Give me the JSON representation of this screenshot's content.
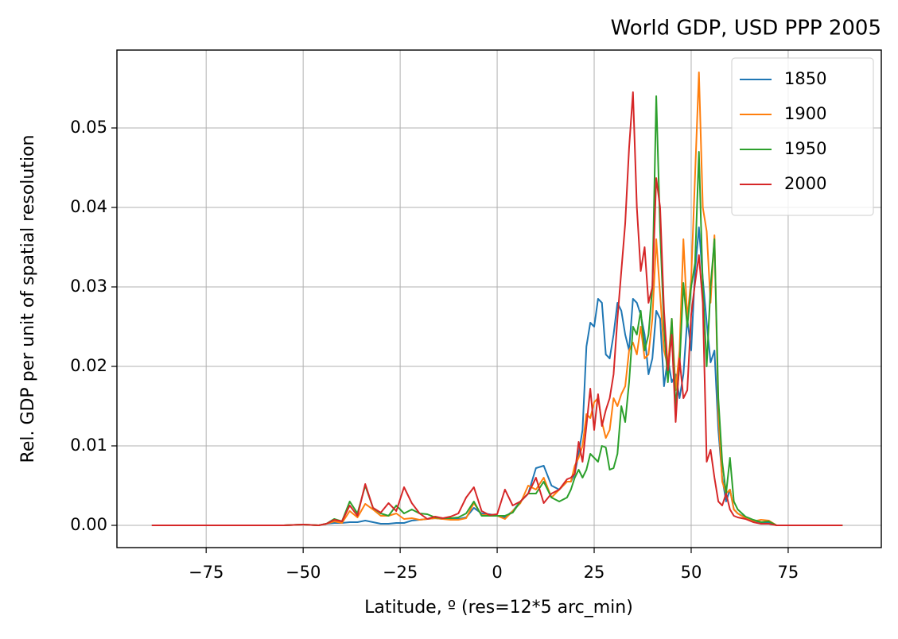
{
  "chart_data": {
    "type": "line",
    "title": "World GDP, USD PPP 2005",
    "x_label": "Latitude, º (res=12*5 arc_min)",
    "y_label": "Rel. GDP per unit of spatial resolution",
    "x": [
      -89,
      -70,
      -55,
      -50,
      -46,
      -44,
      -42,
      -40,
      -38,
      -36,
      -34,
      -32,
      -30,
      -28,
      -26,
      -24,
      -22,
      -20,
      -18,
      -16,
      -14,
      -12,
      -10,
      -8,
      -6,
      -4,
      -2,
      0,
      2,
      4,
      6,
      8,
      10,
      12,
      14,
      16,
      18,
      19,
      20,
      21,
      22,
      23,
      24,
      25,
      26,
      27,
      28,
      29,
      30,
      31,
      32,
      33,
      34,
      35,
      36,
      37,
      38,
      39,
      40,
      41,
      42,
      43,
      44,
      45,
      46,
      47,
      48,
      49,
      50,
      51,
      52,
      53,
      54,
      55,
      56,
      57,
      58,
      59,
      60,
      61,
      62,
      64,
      66,
      68,
      70,
      72,
      89
    ],
    "series": [
      {
        "name": "1850",
        "color": "#1f77b4",
        "values": [
          0,
          0,
          0,
          0.0001,
          0,
          0.0002,
          0.0003,
          0.0003,
          0.0004,
          0.0004,
          0.0006,
          0.0004,
          0.0002,
          0.0002,
          0.0003,
          0.0003,
          0.0006,
          0.0007,
          0.0008,
          0.0009,
          0.0008,
          0.0008,
          0.0008,
          0.001,
          0.0022,
          0.0015,
          0.0014,
          0.0012,
          0.001,
          0.0018,
          0.003,
          0.004,
          0.0072,
          0.0075,
          0.005,
          0.0045,
          0.0055,
          0.0055,
          0.0065,
          0.009,
          0.012,
          0.0225,
          0.0255,
          0.025,
          0.0285,
          0.028,
          0.0215,
          0.021,
          0.024,
          0.028,
          0.027,
          0.024,
          0.022,
          0.0285,
          0.028,
          0.0265,
          0.024,
          0.019,
          0.021,
          0.027,
          0.026,
          0.0175,
          0.021,
          0.018,
          0.019,
          0.016,
          0.019,
          0.026,
          0.022,
          0.032,
          0.0375,
          0.031,
          0.0255,
          0.0205,
          0.022,
          0.012,
          0.006,
          0.003,
          0.0045,
          0.002,
          0.0015,
          0.001,
          0.0006,
          0.0004,
          0.0004,
          0,
          0
        ]
      },
      {
        "name": "1900",
        "color": "#ff7f0e",
        "values": [
          0,
          0,
          0,
          0.0001,
          0,
          0.0002,
          0.0005,
          0.0003,
          0.0018,
          0.001,
          0.0027,
          0.002,
          0.0012,
          0.0012,
          0.0015,
          0.0008,
          0.0009,
          0.0007,
          0.0008,
          0.0009,
          0.0008,
          0.0007,
          0.0007,
          0.0009,
          0.0028,
          0.0013,
          0.0013,
          0.0012,
          0.0008,
          0.0018,
          0.0028,
          0.005,
          0.0045,
          0.006,
          0.0035,
          0.0045,
          0.0055,
          0.0055,
          0.0075,
          0.0085,
          0.01,
          0.014,
          0.0135,
          0.0155,
          0.016,
          0.013,
          0.011,
          0.012,
          0.016,
          0.015,
          0.0165,
          0.0175,
          0.022,
          0.023,
          0.0215,
          0.025,
          0.021,
          0.0215,
          0.026,
          0.036,
          0.029,
          0.022,
          0.02,
          0.026,
          0.017,
          0.022,
          0.036,
          0.026,
          0.031,
          0.044,
          0.057,
          0.04,
          0.037,
          0.028,
          0.0365,
          0.014,
          0.0055,
          0.004,
          0.0045,
          0.002,
          0.0015,
          0.0009,
          0.0005,
          0.0007,
          0.0006,
          0,
          0
        ]
      },
      {
        "name": "1950",
        "color": "#2ca02c",
        "values": [
          0,
          0,
          0,
          0.0001,
          0,
          0.0002,
          0.0008,
          0.0005,
          0.003,
          0.0015,
          0.005,
          0.0022,
          0.0015,
          0.0012,
          0.0025,
          0.0015,
          0.002,
          0.0015,
          0.0014,
          0.001,
          0.0009,
          0.0009,
          0.001,
          0.0015,
          0.003,
          0.0012,
          0.0012,
          0.0012,
          0.0012,
          0.0016,
          0.003,
          0.004,
          0.004,
          0.0055,
          0.0035,
          0.003,
          0.0035,
          0.0045,
          0.006,
          0.007,
          0.006,
          0.007,
          0.009,
          0.0085,
          0.008,
          0.01,
          0.0098,
          0.007,
          0.0072,
          0.009,
          0.015,
          0.013,
          0.018,
          0.025,
          0.024,
          0.027,
          0.022,
          0.024,
          0.03,
          0.054,
          0.037,
          0.025,
          0.018,
          0.026,
          0.015,
          0.02,
          0.0305,
          0.025,
          0.03,
          0.033,
          0.047,
          0.03,
          0.02,
          0.03,
          0.036,
          0.016,
          0.008,
          0.004,
          0.0085,
          0.003,
          0.002,
          0.0011,
          0.0007,
          0.0004,
          0.0005,
          0,
          0
        ]
      },
      {
        "name": "2000",
        "color": "#d62728",
        "values": [
          0,
          0,
          0,
          0.0001,
          0,
          0.0002,
          0.0007,
          0.0005,
          0.0025,
          0.0012,
          0.0052,
          0.0022,
          0.0016,
          0.0028,
          0.0018,
          0.0048,
          0.0028,
          0.0015,
          0.0008,
          0.0011,
          0.0009,
          0.0011,
          0.0015,
          0.0035,
          0.0048,
          0.0018,
          0.0013,
          0.0014,
          0.0045,
          0.0025,
          0.003,
          0.004,
          0.006,
          0.0028,
          0.004,
          0.0045,
          0.0058,
          0.006,
          0.0065,
          0.0105,
          0.008,
          0.0125,
          0.0172,
          0.012,
          0.0165,
          0.0125,
          0.0145,
          0.016,
          0.019,
          0.026,
          0.032,
          0.038,
          0.0475,
          0.0545,
          0.04,
          0.032,
          0.035,
          0.028,
          0.03,
          0.0437,
          0.04,
          0.027,
          0.0195,
          0.024,
          0.013,
          0.021,
          0.016,
          0.017,
          0.0265,
          0.0305,
          0.034,
          0.028,
          0.008,
          0.0095,
          0.006,
          0.003,
          0.0025,
          0.004,
          0.002,
          0.0012,
          0.001,
          0.0008,
          0.0004,
          0.0002,
          0.0002,
          0,
          0
        ]
      }
    ],
    "xlim": [
      -98,
      99
    ],
    "ylim": [
      -0.0028,
      0.0598
    ],
    "xticks": [
      {
        "value": -75,
        "label": "−75"
      },
      {
        "value": -50,
        "label": "−50"
      },
      {
        "value": -25,
        "label": "−25"
      },
      0,
      25,
      50,
      75
    ],
    "yticks": [
      {
        "value": 0,
        "label": "0.00"
      },
      {
        "value": 0.01,
        "label": "0.01"
      },
      {
        "value": 0.02,
        "label": "0.02"
      },
      {
        "value": 0.03,
        "label": "0.03"
      },
      {
        "value": 0.04,
        "label": "0.04"
      },
      {
        "value": 0.05,
        "label": "0.05"
      }
    ],
    "grid": true,
    "legend": "upper right"
  }
}
